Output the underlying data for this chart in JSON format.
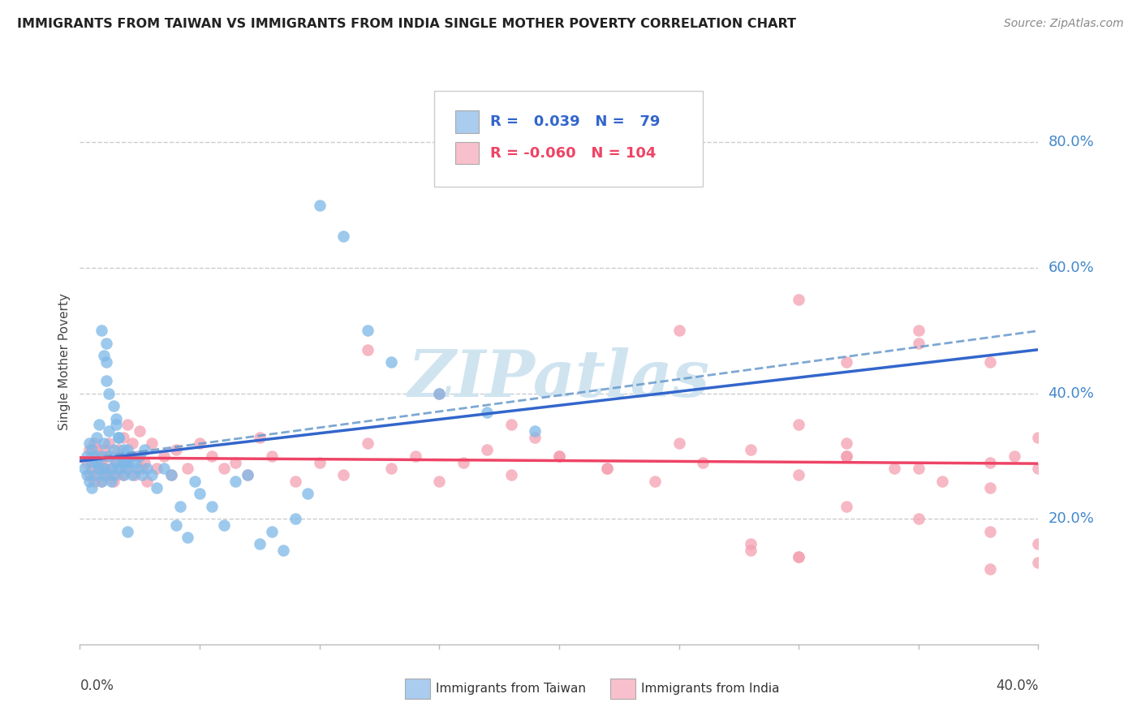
{
  "title": "IMMIGRANTS FROM TAIWAN VS IMMIGRANTS FROM INDIA SINGLE MOTHER POVERTY CORRELATION CHART",
  "source": "Source: ZipAtlas.com",
  "ylabel": "Single Mother Poverty",
  "right_yticks": [
    "20.0%",
    "40.0%",
    "60.0%",
    "80.0%"
  ],
  "right_ytick_vals": [
    0.2,
    0.4,
    0.6,
    0.8
  ],
  "taiwan_R": 0.039,
  "taiwan_N": 79,
  "india_R": -0.06,
  "india_N": 104,
  "taiwan_color": "#7db8e8",
  "india_color": "#f4a0b0",
  "taiwan_legend_color": "#aaccee",
  "india_legend_color": "#f8c0cc",
  "taiwan_line_color": "#3366cc",
  "india_line_color": "#ee4466",
  "watermark_color": "#d0e4f0",
  "watermark": "ZIPatlas",
  "xlim": [
    0.0,
    0.4
  ],
  "ylim": [
    0.0,
    0.9
  ],
  "taiwan_points_x": [
    0.002,
    0.003,
    0.003,
    0.004,
    0.004,
    0.005,
    0.005,
    0.005,
    0.006,
    0.006,
    0.007,
    0.007,
    0.008,
    0.008,
    0.009,
    0.009,
    0.01,
    0.01,
    0.01,
    0.011,
    0.011,
    0.012,
    0.012,
    0.013,
    0.013,
    0.014,
    0.014,
    0.015,
    0.015,
    0.016,
    0.016,
    0.017,
    0.018,
    0.018,
    0.019,
    0.02,
    0.02,
    0.021,
    0.022,
    0.023,
    0.024,
    0.025,
    0.026,
    0.027,
    0.028,
    0.03,
    0.032,
    0.035,
    0.038,
    0.04,
    0.042,
    0.045,
    0.048,
    0.05,
    0.055,
    0.06,
    0.065,
    0.07,
    0.075,
    0.08,
    0.085,
    0.09,
    0.095,
    0.1,
    0.11,
    0.12,
    0.13,
    0.15,
    0.17,
    0.19,
    0.009,
    0.01,
    0.011,
    0.012,
    0.014,
    0.015,
    0.016,
    0.018,
    0.02
  ],
  "taiwan_points_y": [
    0.28,
    0.3,
    0.27,
    0.32,
    0.26,
    0.29,
    0.31,
    0.25,
    0.3,
    0.27,
    0.33,
    0.29,
    0.35,
    0.28,
    0.3,
    0.26,
    0.32,
    0.28,
    0.27,
    0.45,
    0.48,
    0.34,
    0.3,
    0.28,
    0.26,
    0.31,
    0.27,
    0.35,
    0.29,
    0.33,
    0.28,
    0.3,
    0.29,
    0.27,
    0.28,
    0.31,
    0.29,
    0.3,
    0.27,
    0.29,
    0.28,
    0.3,
    0.27,
    0.31,
    0.28,
    0.27,
    0.25,
    0.28,
    0.27,
    0.19,
    0.22,
    0.17,
    0.26,
    0.24,
    0.22,
    0.19,
    0.26,
    0.27,
    0.16,
    0.18,
    0.15,
    0.2,
    0.24,
    0.7,
    0.65,
    0.5,
    0.45,
    0.4,
    0.37,
    0.34,
    0.5,
    0.46,
    0.42,
    0.4,
    0.38,
    0.36,
    0.33,
    0.31,
    0.18
  ],
  "india_points_x": [
    0.003,
    0.004,
    0.004,
    0.005,
    0.005,
    0.006,
    0.006,
    0.007,
    0.007,
    0.008,
    0.008,
    0.009,
    0.009,
    0.01,
    0.01,
    0.011,
    0.011,
    0.012,
    0.012,
    0.013,
    0.013,
    0.014,
    0.015,
    0.015,
    0.016,
    0.016,
    0.017,
    0.018,
    0.018,
    0.019,
    0.02,
    0.02,
    0.021,
    0.022,
    0.023,
    0.024,
    0.025,
    0.026,
    0.027,
    0.028,
    0.03,
    0.032,
    0.035,
    0.038,
    0.04,
    0.045,
    0.05,
    0.055,
    0.06,
    0.065,
    0.07,
    0.075,
    0.08,
    0.09,
    0.1,
    0.11,
    0.12,
    0.13,
    0.14,
    0.15,
    0.16,
    0.17,
    0.18,
    0.19,
    0.2,
    0.22,
    0.24,
    0.26,
    0.28,
    0.3,
    0.32,
    0.34,
    0.36,
    0.38,
    0.4,
    0.25,
    0.28,
    0.3,
    0.32,
    0.35,
    0.38,
    0.4,
    0.3,
    0.32,
    0.35,
    0.38,
    0.4,
    0.12,
    0.15,
    0.18,
    0.2,
    0.22,
    0.25,
    0.28,
    0.3,
    0.35,
    0.38,
    0.32,
    0.35,
    0.38,
    0.39,
    0.4,
    0.3,
    0.32
  ],
  "india_points_y": [
    0.29,
    0.31,
    0.27,
    0.3,
    0.28,
    0.32,
    0.26,
    0.31,
    0.27,
    0.3,
    0.28,
    0.29,
    0.26,
    0.31,
    0.28,
    0.3,
    0.27,
    0.32,
    0.27,
    0.3,
    0.28,
    0.26,
    0.29,
    0.27,
    0.31,
    0.28,
    0.3,
    0.33,
    0.27,
    0.29,
    0.35,
    0.28,
    0.3,
    0.32,
    0.27,
    0.3,
    0.34,
    0.28,
    0.29,
    0.26,
    0.32,
    0.28,
    0.3,
    0.27,
    0.31,
    0.28,
    0.32,
    0.3,
    0.28,
    0.29,
    0.27,
    0.33,
    0.3,
    0.26,
    0.29,
    0.27,
    0.32,
    0.28,
    0.3,
    0.26,
    0.29,
    0.31,
    0.27,
    0.33,
    0.3,
    0.28,
    0.26,
    0.29,
    0.31,
    0.27,
    0.3,
    0.28,
    0.26,
    0.29,
    0.33,
    0.5,
    0.16,
    0.14,
    0.45,
    0.48,
    0.12,
    0.13,
    0.55,
    0.22,
    0.2,
    0.18,
    0.16,
    0.47,
    0.4,
    0.35,
    0.3,
    0.28,
    0.32,
    0.15,
    0.14,
    0.5,
    0.45,
    0.3,
    0.28,
    0.25,
    0.3,
    0.28,
    0.35,
    0.32
  ]
}
